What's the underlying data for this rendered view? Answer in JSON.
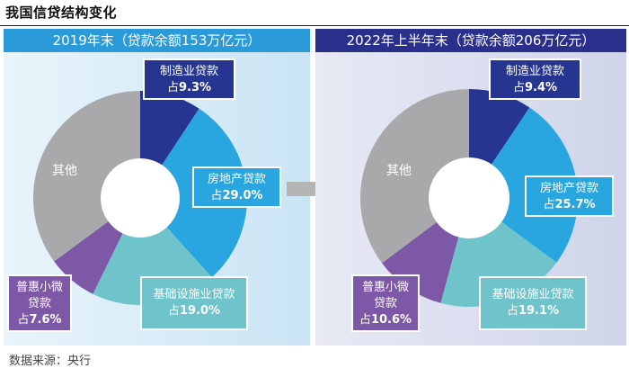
{
  "title": "我国信贷结构变化",
  "source": "数据来源：央行",
  "colors": {
    "manufacturing": "#263590",
    "real_estate": "#29a6e0",
    "infrastructure": "#6fc4cc",
    "sme": "#7d58a6",
    "other": "#a9a9ab"
  },
  "panels": [
    {
      "header": "2019年末（贷款余额153万亿元）",
      "labels": {
        "manufacturing": {
          "name": "制造业贷款",
          "prefix": "占",
          "value": "9.3%"
        },
        "real_estate": {
          "name": "房地产贷款",
          "prefix": "占",
          "value": "29.0%"
        },
        "infrastructure": {
          "name": "基础设施业贷款",
          "prefix": "占",
          "value": "19.0%"
        },
        "sme": {
          "name1": "普惠小微",
          "name2": "贷款",
          "prefix": "占",
          "value": "7.6%"
        },
        "other": {
          "name": "其他"
        }
      }
    },
    {
      "header": "2022年上半年末（贷款余额206万亿元）",
      "labels": {
        "manufacturing": {
          "name": "制造业贷款",
          "prefix": "占",
          "value": "9.4%"
        },
        "real_estate": {
          "name": "房地产贷款",
          "prefix": "占",
          "value": "25.7%"
        },
        "infrastructure": {
          "name": "基础设施业贷款",
          "prefix": "占",
          "value": "19.1%"
        },
        "sme": {
          "name1": "普惠小微",
          "name2": "贷款",
          "prefix": "占",
          "value": "10.6%"
        },
        "other": {
          "name": "其他"
        }
      }
    }
  ],
  "chart_data": [
    {
      "type": "pie",
      "title": "2019年末（贷款余额153万亿元）",
      "categories": [
        "制造业贷款",
        "房地产贷款",
        "基础设施业贷款",
        "普惠小微贷款",
        "其他"
      ],
      "values": [
        9.3,
        29.0,
        19.0,
        7.6,
        35.1
      ],
      "donut": true
    },
    {
      "type": "pie",
      "title": "2022年上半年末（贷款余额206万亿元）",
      "categories": [
        "制造业贷款",
        "房地产贷款",
        "基础设施业贷款",
        "普惠小微贷款",
        "其他"
      ],
      "values": [
        9.4,
        25.7,
        19.1,
        10.6,
        35.2
      ],
      "donut": true
    }
  ]
}
